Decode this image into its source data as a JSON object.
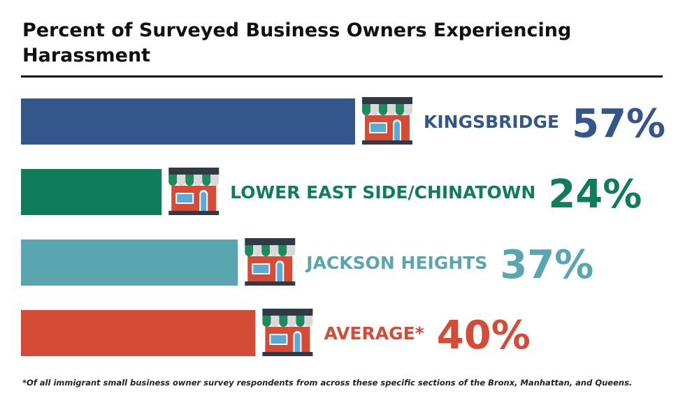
{
  "title": "Percent of Surveyed Business Owners Experiencing Harassment",
  "footnote": "*Of all immigrant small business owner survey respondents from across these specific sections of the Bronx, Manhattan, and Queens.",
  "icon": "storefront-icon",
  "chart_data": {
    "type": "bar",
    "orientation": "horizontal",
    "title": "Percent of Surveyed Business Owners Experiencing Harassment",
    "categories": [
      "KINGSBRIDGE",
      "LOWER EAST SIDE/CHINATOWN",
      "JACKSON HEIGHTS",
      "AVERAGE*"
    ],
    "values": [
      57,
      24,
      37,
      40
    ],
    "value_labels": [
      "57%",
      "24%",
      "37%",
      "40%"
    ],
    "colors": [
      "#33578a",
      "#0f7d59",
      "#5aa6b0",
      "#d64b36"
    ],
    "xlim": [
      0,
      57
    ],
    "grid": false,
    "legend": "none"
  }
}
